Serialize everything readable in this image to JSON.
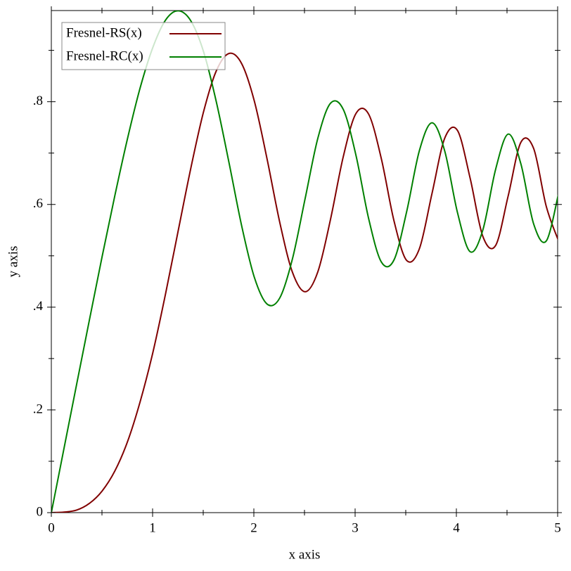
{
  "chart_data": {
    "type": "line",
    "x_label": "x axis",
    "y_label": "y axis",
    "x": [
      0,
      0.125,
      0.251,
      0.376,
      0.501,
      0.627,
      0.752,
      0.877,
      1.003,
      1.128,
      1.253,
      1.379,
      1.504,
      1.629,
      1.755,
      1.88,
      2.005,
      2.131,
      2.256,
      2.381,
      2.507,
      2.632,
      2.757,
      2.883,
      3.008,
      3.133,
      3.259,
      3.384,
      3.509,
      3.635,
      3.76,
      3.885,
      4.011,
      4.136,
      4.261,
      4.387,
      4.512,
      4.637,
      4.763,
      4.888,
      5.013
    ],
    "series": [
      {
        "name": "Fresnel-RS(x)",
        "color": "#800000",
        "values": [
          0,
          0.001,
          0.005,
          0.018,
          0.042,
          0.081,
          0.138,
          0.216,
          0.312,
          0.426,
          0.549,
          0.672,
          0.781,
          0.86,
          0.894,
          0.874,
          0.801,
          0.688,
          0.565,
          0.468,
          0.43,
          0.469,
          0.571,
          0.693,
          0.777,
          0.776,
          0.689,
          0.568,
          0.491,
          0.514,
          0.622,
          0.729,
          0.744,
          0.651,
          0.538,
          0.52,
          0.617,
          0.721,
          0.709,
          0.596,
          0.527
        ]
      },
      {
        "name": "Fresnel-RC(x)",
        "color": "#008000",
        "values": [
          0,
          0.125,
          0.251,
          0.375,
          0.498,
          0.617,
          0.728,
          0.827,
          0.906,
          0.959,
          0.977,
          0.957,
          0.897,
          0.8,
          0.681,
          0.558,
          0.458,
          0.406,
          0.418,
          0.494,
          0.612,
          0.729,
          0.797,
          0.785,
          0.696,
          0.573,
          0.488,
          0.492,
          0.586,
          0.705,
          0.759,
          0.704,
          0.584,
          0.508,
          0.55,
          0.668,
          0.737,
          0.679,
          0.562,
          0.529,
          0.625
        ]
      }
    ],
    "xlim": [
      0,
      5
    ],
    "ylim": [
      0,
      0.9775
    ],
    "xticks": [
      0,
      1,
      2,
      3,
      4,
      5
    ],
    "yticks": [
      0,
      {
        "value": 0.2,
        "label": ".2"
      },
      {
        "value": 0.4,
        "label": ".4"
      },
      {
        "value": 0.6,
        "label": ".6"
      },
      {
        "value": 0.8,
        "label": ".8"
      }
    ],
    "x_minor_ticks": [
      0.5,
      1.5,
      2.5,
      3.5,
      4.5
    ],
    "y_minor_ticks": [
      0.1,
      0.3,
      0.5,
      0.7,
      0.9
    ],
    "legend": "top-left"
  }
}
